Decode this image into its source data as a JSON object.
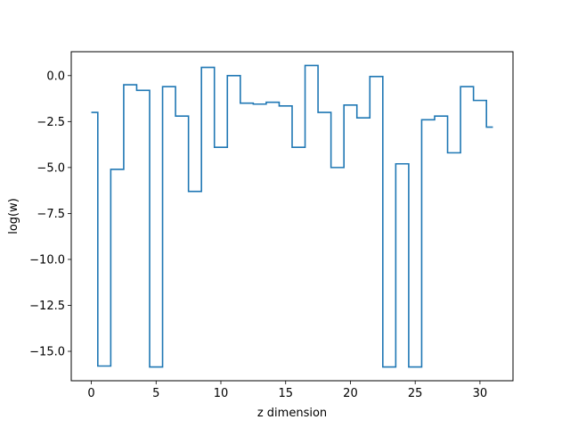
{
  "chart_data": {
    "type": "line",
    "drawstyle": "steps-mid",
    "xlabel": "z dimension",
    "ylabel": "log(w)",
    "xlim": [
      -1.55,
      32.55
    ],
    "ylim": [
      -16.6,
      1.3
    ],
    "xticks": [
      0,
      5,
      10,
      15,
      20,
      25,
      30
    ],
    "xtick_labels": [
      "0",
      "5",
      "10",
      "15",
      "20",
      "25",
      "30"
    ],
    "yticks": [
      0.0,
      -2.5,
      -5.0,
      -7.5,
      -10.0,
      -12.5,
      -15.0
    ],
    "ytick_labels": [
      "0.0",
      "−2.5",
      "−5.0",
      "−7.5",
      "−10.0",
      "−12.5",
      "−15.0"
    ],
    "grid": false,
    "line_color": "#1f77b4",
    "series": [
      {
        "x": [
          0,
          1,
          2,
          3,
          4,
          5,
          6,
          7,
          8,
          9,
          10,
          11,
          12,
          13,
          14,
          15,
          16,
          17,
          18,
          19,
          20,
          21,
          22,
          23,
          24,
          25,
          26,
          27,
          28,
          29,
          30,
          31
        ],
        "values": [
          -2.0,
          -15.8,
          -5.1,
          -0.5,
          -0.8,
          -15.85,
          -0.6,
          -2.2,
          -6.3,
          0.45,
          -3.9,
          0.0,
          -1.5,
          -1.55,
          -1.45,
          -1.65,
          -3.9,
          0.55,
          -2.0,
          -5.0,
          -1.6,
          -2.3,
          -0.05,
          -15.85,
          -4.8,
          -15.85,
          -2.4,
          -2.2,
          -4.2,
          -0.6,
          -1.35,
          -2.8
        ]
      }
    ]
  }
}
